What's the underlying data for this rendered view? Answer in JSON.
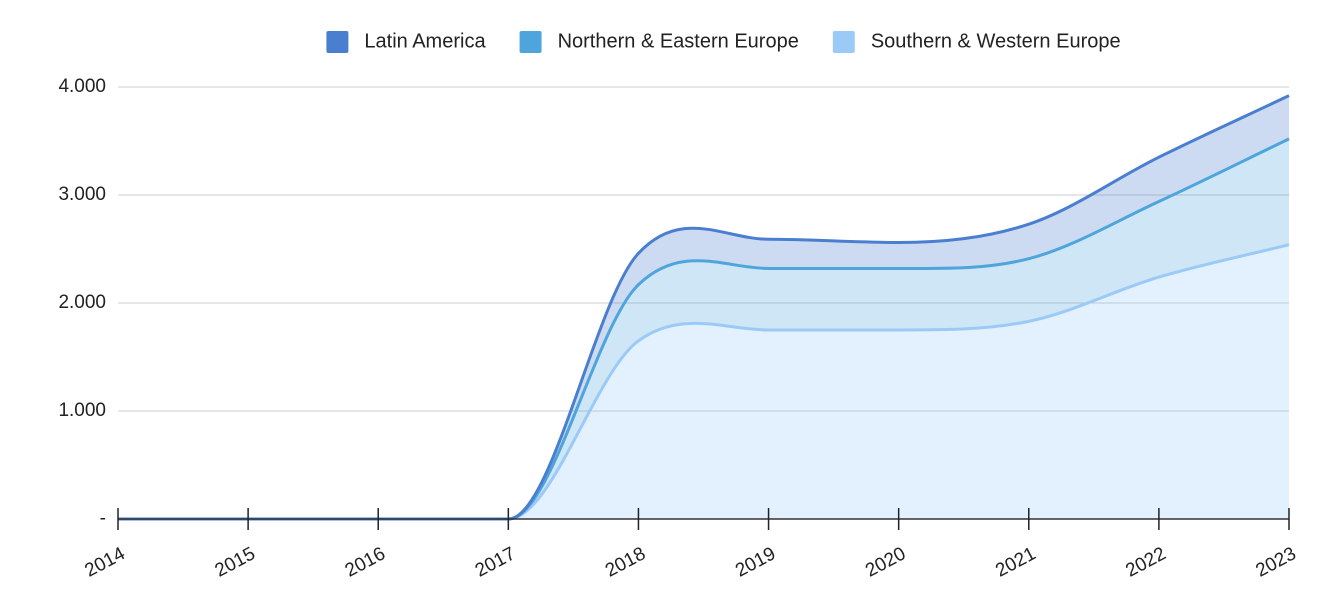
{
  "chart_data": {
    "type": "stacked-area",
    "categories": [
      "2014",
      "2015",
      "2016",
      "2017",
      "2018",
      "2019",
      "2020",
      "2021",
      "2022",
      "2023"
    ],
    "series": [
      {
        "name": "Latin America",
        "color": "#4a7fcf",
        "values": [
          0,
          0,
          0,
          0,
          290,
          270,
          240,
          320,
          410,
          400
        ]
      },
      {
        "name": "Northern & Eastern Europe",
        "color": "#4ea5dc",
        "values": [
          0,
          0,
          0,
          0,
          520,
          570,
          570,
          580,
          700,
          980
        ]
      },
      {
        "name": "Southern & Western Europe",
        "color": "#9ccaf7",
        "values": [
          0,
          0,
          0,
          0,
          1650,
          1750,
          1750,
          1830,
          2240,
          2540
        ]
      }
    ],
    "ylim": [
      0,
      4000
    ],
    "yticks": [
      {
        "value": 0,
        "label": "-"
      },
      {
        "value": 1000,
        "label": "1.000"
      },
      {
        "value": 2000,
        "label": "2.000"
      },
      {
        "value": 3000,
        "label": "3.000"
      },
      {
        "value": 4000,
        "label": "4.000"
      }
    ],
    "grid": true,
    "legend": "top"
  }
}
